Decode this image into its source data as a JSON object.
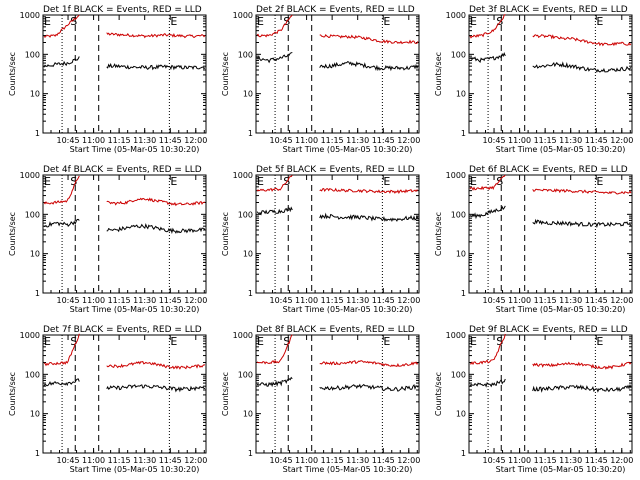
{
  "figure": {
    "colors": {
      "events": "#000000",
      "lld": "#cc0000",
      "axis": "#000000"
    },
    "panel_labels": {
      "start": "S",
      "end": "E"
    }
  },
  "chart_data": [
    {
      "type": "line",
      "title": "Det 1f BLACK = Events, RED = LLD",
      "xlabel": "Start Time (05-Mar-05 10:30:20)",
      "ylabel": "Counts/sec",
      "yscale": "log",
      "ylim": [
        1,
        1000
      ],
      "yticks": [
        "1",
        "10",
        "100",
        "1000"
      ],
      "xticks": [
        "10:45",
        "11:00",
        "11:15",
        "11:30",
        "11:45",
        "12:00"
      ],
      "series": [
        {
          "name": "LLD",
          "before": [
            280,
            300,
            560,
            1000
          ],
          "after": [
            330,
            320,
            310,
            300,
            290,
            300,
            310,
            300,
            290,
            290,
            300
          ]
        },
        {
          "name": "Events",
          "before": [
            50,
            55,
            60,
            80
          ],
          "after": [
            50,
            50,
            48,
            47,
            46,
            47,
            48,
            47,
            46,
            46,
            48
          ]
        }
      ]
    },
    {
      "type": "line",
      "title": "Det 2f BLACK = Events, RED = LLD",
      "xlabel": "Start Time (05-Mar-05 10:30:20)",
      "ylabel": "Counts/sec",
      "yscale": "log",
      "ylim": [
        1,
        1000
      ],
      "yticks": [
        "1",
        "10",
        "100",
        "1000"
      ],
      "xticks": [
        "10:45",
        "11:00",
        "11:15",
        "11:30",
        "11:45",
        "12:00"
      ],
      "series": [
        {
          "name": "LLD",
          "before": [
            300,
            300,
            400,
            1000
          ],
          "after": [
            300,
            290,
            280,
            280,
            270,
            250,
            220,
            210,
            200,
            210,
            200
          ]
        },
        {
          "name": "Events",
          "before": [
            80,
            70,
            80,
            100
          ],
          "after": [
            50,
            50,
            55,
            60,
            55,
            50,
            45,
            45,
            45,
            45,
            50
          ]
        }
      ]
    },
    {
      "type": "line",
      "title": "Det 3f BLACK = Events, RED = LLD",
      "xlabel": "Start Time (05-Mar-05 10:30:20)",
      "ylabel": "Counts/sec",
      "yscale": "log",
      "ylim": [
        1,
        1000
      ],
      "yticks": [
        "1",
        "10",
        "100",
        "1000"
      ],
      "xticks": [
        "10:45",
        "11:00",
        "11:15",
        "11:30",
        "11:45",
        "12:00"
      ],
      "series": [
        {
          "name": "LLD",
          "before": [
            280,
            300,
            400,
            1000
          ],
          "after": [
            300,
            290,
            280,
            250,
            250,
            220,
            200,
            180,
            180,
            190,
            180
          ]
        },
        {
          "name": "Events",
          "before": [
            80,
            70,
            80,
            100
          ],
          "after": [
            50,
            50,
            55,
            55,
            50,
            45,
            40,
            40,
            40,
            42,
            45
          ]
        }
      ]
    },
    {
      "type": "line",
      "title": "Det 4f BLACK = Events, RED = LLD",
      "xlabel": "Start Time (05-Mar-05 10:30:20)",
      "ylabel": "Counts/sec",
      "yscale": "log",
      "ylim": [
        1,
        1000
      ],
      "yticks": [
        "1",
        "10",
        "100",
        "1000"
      ],
      "xticks": [
        "10:45",
        "11:00",
        "11:15",
        "11:30",
        "11:45",
        "12:00"
      ],
      "series": [
        {
          "name": "LLD",
          "before": [
            190,
            200,
            220,
            1000
          ],
          "after": [
            200,
            190,
            200,
            240,
            250,
            220,
            200,
            180,
            180,
            190,
            200
          ]
        },
        {
          "name": "Events",
          "before": [
            50,
            60,
            55,
            70
          ],
          "after": [
            40,
            40,
            45,
            50,
            50,
            45,
            40,
            38,
            38,
            40,
            40
          ]
        }
      ]
    },
    {
      "type": "line",
      "title": "Det 5f BLACK = Events, RED = LLD",
      "xlabel": "Start Time (05-Mar-05 10:30:20)",
      "ylabel": "Counts/sec",
      "yscale": "log",
      "ylim": [
        1,
        1000
      ],
      "yticks": [
        "1",
        "10",
        "100",
        "1000"
      ],
      "xticks": [
        "10:45",
        "11:00",
        "11:15",
        "11:30",
        "11:45",
        "12:00"
      ],
      "series": [
        {
          "name": "LLD",
          "before": [
            400,
            420,
            440,
            1000
          ],
          "after": [
            420,
            420,
            410,
            400,
            400,
            390,
            380,
            380,
            380,
            390,
            400
          ]
        },
        {
          "name": "Events",
          "before": [
            110,
            115,
            120,
            140
          ],
          "after": [
            90,
            90,
            85,
            85,
            85,
            80,
            75,
            75,
            75,
            80,
            80
          ]
        }
      ]
    },
    {
      "type": "line",
      "title": "Det 6f BLACK = Events, RED = LLD",
      "xlabel": "Start Time (05-Mar-05 10:30:20)",
      "ylabel": "Counts/sec",
      "yscale": "log",
      "ylim": [
        1,
        1000
      ],
      "yticks": [
        "1",
        "10",
        "100",
        "1000"
      ],
      "xticks": [
        "10:45",
        "11:00",
        "11:15",
        "11:30",
        "11:45",
        "12:00"
      ],
      "series": [
        {
          "name": "LLD",
          "before": [
            450,
            460,
            480,
            1000
          ],
          "after": [
            420,
            410,
            400,
            400,
            390,
            380,
            370,
            360,
            350,
            360,
            360
          ]
        },
        {
          "name": "Events",
          "before": [
            90,
            95,
            120,
            150
          ],
          "after": [
            65,
            62,
            60,
            60,
            58,
            56,
            55,
            55,
            55,
            56,
            58
          ]
        }
      ]
    },
    {
      "type": "line",
      "title": "Det 7f BLACK = Events, RED = LLD",
      "xlabel": "Start Time (05-Mar-05 10:30:20)",
      "ylabel": "Counts/sec",
      "yscale": "log",
      "ylim": [
        1,
        1000
      ],
      "yticks": [
        "1",
        "10",
        "100",
        "1000"
      ],
      "xticks": [
        "10:45",
        "11:00",
        "11:15",
        "11:30",
        "11:45",
        "12:00"
      ],
      "series": [
        {
          "name": "LLD",
          "before": [
            180,
            190,
            200,
            1000
          ],
          "after": [
            170,
            160,
            170,
            190,
            200,
            180,
            160,
            150,
            150,
            160,
            170
          ]
        },
        {
          "name": "Events",
          "before": [
            55,
            60,
            60,
            70
          ],
          "after": [
            45,
            45,
            47,
            50,
            50,
            48,
            45,
            42,
            42,
            45,
            48
          ]
        }
      ]
    },
    {
      "type": "line",
      "title": "Det 8f BLACK = Events, RED = LLD",
      "xlabel": "Start Time (05-Mar-05 10:30:20)",
      "ylabel": "Counts/sec",
      "yscale": "log",
      "ylim": [
        1,
        1000
      ],
      "yticks": [
        "1",
        "10",
        "100",
        "1000"
      ],
      "xticks": [
        "10:45",
        "11:00",
        "11:15",
        "11:30",
        "11:45",
        "12:00"
      ],
      "series": [
        {
          "name": "LLD",
          "before": [
            200,
            200,
            210,
            1000
          ],
          "after": [
            200,
            190,
            190,
            200,
            210,
            200,
            190,
            170,
            170,
            180,
            200
          ]
        },
        {
          "name": "Events",
          "before": [
            55,
            55,
            60,
            75
          ],
          "after": [
            45,
            45,
            45,
            48,
            50,
            48,
            45,
            42,
            42,
            45,
            50
          ]
        }
      ]
    },
    {
      "type": "line",
      "title": "Det 9f BLACK = Events, RED = LLD",
      "xlabel": "Start Time (05-Mar-05 10:30:20)",
      "ylabel": "Counts/sec",
      "yscale": "log",
      "ylim": [
        1,
        1000
      ],
      "yticks": [
        "1",
        "10",
        "100",
        "1000"
      ],
      "xticks": [
        "10:45",
        "11:00",
        "11:15",
        "11:30",
        "11:45",
        "12:00"
      ],
      "series": [
        {
          "name": "LLD",
          "before": [
            190,
            200,
            220,
            1000
          ],
          "after": [
            180,
            170,
            170,
            180,
            190,
            180,
            160,
            150,
            150,
            170,
            200
          ]
        },
        {
          "name": "Events",
          "before": [
            50,
            55,
            55,
            70
          ],
          "after": [
            42,
            42,
            44,
            46,
            48,
            46,
            42,
            40,
            40,
            42,
            48
          ]
        }
      ]
    }
  ]
}
